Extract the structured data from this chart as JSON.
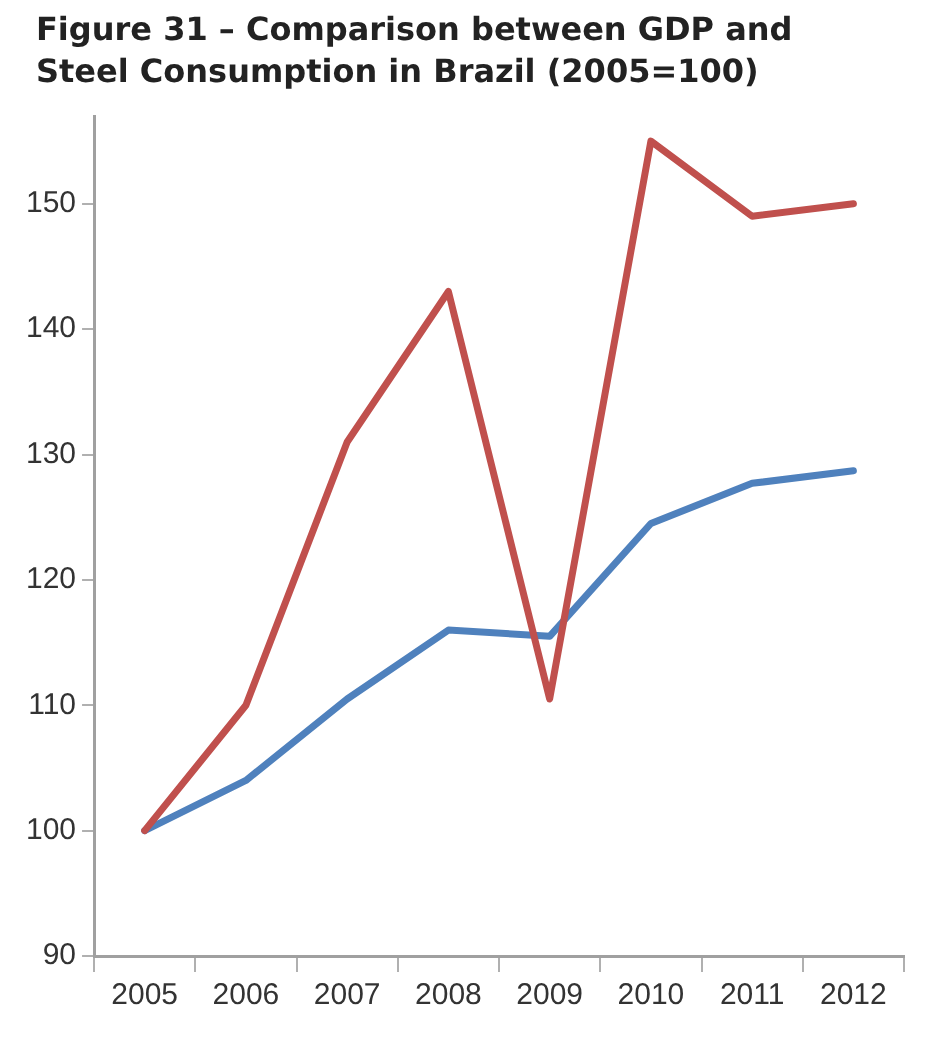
{
  "chart_data": {
    "type": "line",
    "title": "Figure 31 – Comparison between GDP and Steel Consumption in Brazil (2005=100)",
    "categories": [
      "2005",
      "2006",
      "2007",
      "2008",
      "2009",
      "2010",
      "2011",
      "2012"
    ],
    "series": [
      {
        "color": "#c0504d",
        "values": [
          100,
          110,
          131,
          143,
          110.5,
          155,
          149,
          150
        ]
      },
      {
        "color": "#4f81bd",
        "values": [
          100,
          104,
          110.5,
          116,
          115.5,
          124.5,
          127.7,
          128.7
        ]
      }
    ],
    "ylim": [
      90,
      157
    ],
    "yticks": [
      90,
      100,
      110,
      120,
      130,
      140,
      150
    ],
    "grid": false,
    "legend": false,
    "marker": "none",
    "line_style": "solid"
  }
}
